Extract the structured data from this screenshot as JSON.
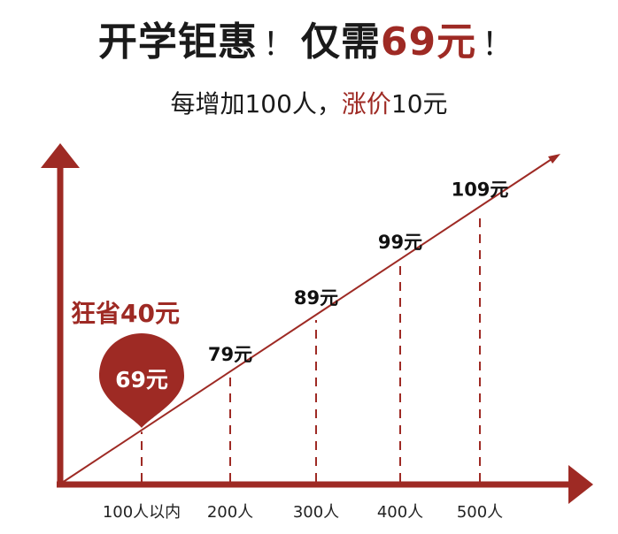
{
  "header": {
    "title_part1": "开学钜惠",
    "title_bang1": "！",
    "title_part2": "仅需",
    "title_price": "69元",
    "title_bang2": "！",
    "sub_part1": "每增加100人，",
    "sub_accent": "涨价",
    "sub_part2": "10元"
  },
  "callout": {
    "savings": "狂省40元",
    "bubble_price": "69元"
  },
  "colors": {
    "accent": "#9e2a24",
    "axis": "#9e2a24",
    "text": "#1a1a1a"
  },
  "chart_data": {
    "type": "line",
    "categories": [
      "100人以内",
      "200人",
      "300人",
      "400人",
      "500人"
    ],
    "values": [
      69,
      79,
      89,
      99,
      109
    ],
    "value_labels": [
      "69元",
      "79元",
      "89元",
      "99元",
      "109元"
    ],
    "title": "",
    "xlabel": "",
    "ylabel": "",
    "grid": false
  }
}
